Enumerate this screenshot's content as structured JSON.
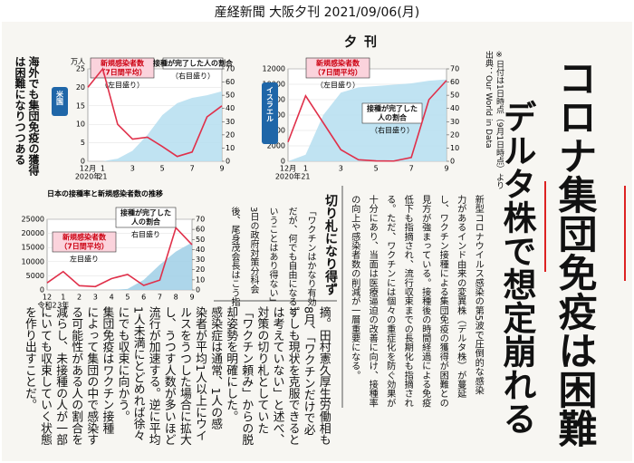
{
  "header": {
    "source": "産経新聞 大阪夕刊 2021/09/06(月)",
    "masthead": "夕刊"
  },
  "headline": {
    "main": "コロナ集団免疫は困難",
    "sub": "デルタ株で想定崩れる"
  },
  "caption": [
    "海外でも集団免疫の獲得",
    "は困難になりつつある"
  ],
  "note": [
    "※日付は1日時点（9月1日時点）より",
    "出典：Our World in Data"
  ],
  "article": {
    "lead": [
      "新型コロナウイルス感染の第5波で圧倒的な感染",
      "力があるインド由来の変異株（デルタ株）が蔓延",
      "し、ワクチン接種による集団免疫の獲得が困難との",
      "見方が強まっている。接種後の時間経過による免疫",
      "低下も指摘され、流行収束までの長期化も指摘され",
      "る。ただ、ワクチンには個々の重症化を防ぐ効果が",
      "十分にあり、当面は医療逼迫の改善に向け、接種率",
      "の向上や感染者数の削減が一層重要になる。"
    ],
    "subhead": "切り札になり得ず",
    "body_a": [
      "「ワクチンはかなり有効",
      "だが、何でも自由になると",
      "いうことはあり得ない」",
      "3日の政府対策分科会",
      "後、尾身茂会長はこう指"
    ],
    "body_b": [
      "摘。田村憲久厚生労働相も",
      "8月、「ワクチンだけで必",
      "ずしも現状を克服できると",
      "は考えていない」と述べ、",
      "対策の切り札としていた",
      "「ワクチン頼み」からの脱",
      "却姿勢を明確にした。",
      "感染症は通常、1人の感",
      "染者が平均1人以上にウイ",
      "ルスをうつした場合に拡大",
      "し、うつす人数が多いほど",
      "流行が加速する。逆に平均",
      "1人未満にとどめれば徐々",
      "にでも収束に向かう。",
      "集団免疫はワクチン接種",
      "によって集団の中で感染す",
      "る可能性がある人の割合を",
      "減らし、未接種の人が一部",
      "にいても収束していく状態",
      "を作り出すことだ。"
    ]
  },
  "chart_data": [
    {
      "type": "line",
      "region": "米国",
      "y_unit": "万人",
      "categories": [
        "12月",
        "1",
        null,
        "3",
        null,
        "5",
        null,
        "7",
        null,
        "9"
      ],
      "year_labels": [
        "2020年",
        "21"
      ],
      "ylim": [
        0,
        25
      ],
      "yticks": [
        0,
        5,
        10,
        15,
        20,
        25
      ],
      "y2lim": [
        0,
        70
      ],
      "y2ticks": [
        0,
        10,
        20,
        30,
        40,
        50,
        60,
        70
      ],
      "series": [
        {
          "name": "新規感染者数",
          "sub": "（7日間平均）",
          "scale": "（左目盛り）",
          "color": "#e0304a",
          "values": [
            20,
            25,
            10,
            6,
            6.5,
            4,
            1.3,
            2.5,
            12,
            15
          ]
        },
        {
          "name": "接種が完了した人の割合",
          "scale": "（右目盛り）",
          "color": "#b5def0",
          "axis": "y2",
          "values": [
            0,
            0,
            2,
            8,
            20,
            35,
            44,
            48,
            50,
            53
          ]
        }
      ]
    },
    {
      "type": "line",
      "region": "イスラエル",
      "categories": [
        "12月",
        "1",
        null,
        "3",
        null,
        "5",
        null,
        "7",
        null,
        "9"
      ],
      "year_labels": [
        "2020年",
        "21"
      ],
      "ylim": [
        0,
        12000
      ],
      "yticks": [
        0,
        2000,
        4000,
        6000,
        8000,
        10000,
        12000
      ],
      "y2lim": [
        0,
        70
      ],
      "y2ticks": [
        0,
        10,
        20,
        30,
        40,
        50,
        60,
        70
      ],
      "series": [
        {
          "name": "新規感染者数",
          "sub": "（7日間平均）",
          "scale": "（左目盛り）",
          "color": "#e0304a",
          "values": [
            2500,
            8500,
            5000,
            1500,
            200,
            50,
            30,
            500,
            8000,
            10500
          ]
        },
        {
          "name": "接種が完了した",
          "sub": "人の割合",
          "scale": "（右目盛り）",
          "color": "#b5def0",
          "axis": "y2",
          "values": [
            0,
            5,
            35,
            52,
            56,
            57,
            58,
            59,
            61,
            62
          ]
        }
      ]
    },
    {
      "type": "line",
      "title": "日本の接種率と新規感染者数の推移",
      "categories": [
        "12",
        "1",
        "2",
        "3",
        "4",
        "5",
        "6",
        "7",
        "8",
        "9"
      ],
      "year_labels": [
        "令和2",
        "3年"
      ],
      "ylim": [
        0,
        25000
      ],
      "yticks": [
        0,
        5000,
        10000,
        15000,
        20000,
        25000
      ],
      "y2lim": [
        0,
        70
      ],
      "y2ticks": [
        0,
        10,
        20,
        30,
        40,
        50,
        60,
        70
      ],
      "series": [
        {
          "name": "新規感染者数",
          "sub": "（7日間平均）",
          "scale": "左目盛り",
          "color": "#e0304a",
          "values": [
            2500,
            6500,
            1500,
            1200,
            4000,
            5500,
            1600,
            3500,
            22000,
            16000
          ]
        },
        {
          "name": "接種が完了した",
          "sub": "人の割合",
          "scale": "右目盛り",
          "color": "#9fcfe6",
          "axis": "y2",
          "values": [
            0,
            0,
            0,
            0,
            0,
            1,
            10,
            25,
            38,
            47
          ]
        }
      ]
    }
  ]
}
